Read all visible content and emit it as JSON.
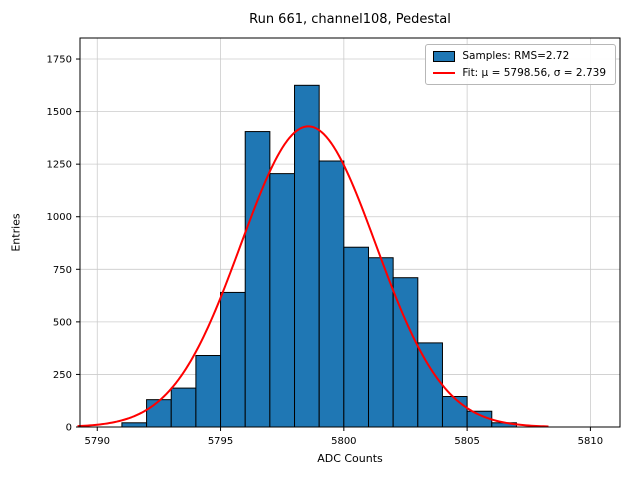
{
  "chart_data": {
    "type": "bar",
    "subtype": "histogram-with-gaussian-fit",
    "title": "Run 661, channel108, Pedestal",
    "xlabel": "ADC Counts",
    "ylabel": "Entries",
    "xlim": [
      5789.3,
      5811.2
    ],
    "ylim": [
      0,
      1850
    ],
    "x_ticks": [
      5790,
      5795,
      5800,
      5805,
      5810
    ],
    "y_ticks": [
      0,
      250,
      500,
      750,
      1000,
      1250,
      1500,
      1750
    ],
    "grid": true,
    "legend_position": "upper right",
    "bins": {
      "start": 5791,
      "width": 1
    },
    "counts": [
      20,
      130,
      185,
      340,
      640,
      1405,
      1205,
      1625,
      1265,
      855,
      805,
      710,
      400,
      145,
      75,
      20
    ],
    "fit": {
      "mu": 5798.56,
      "sigma": 2.739,
      "amplitude": 1430,
      "x_range": [
        5789.2,
        5808.4
      ]
    },
    "legend": [
      "Samples: RMS=2.72",
      "Fit: μ = 5798.56, σ = 2.739"
    ],
    "colors": {
      "bar": "#1f77b4",
      "bar_edge": "#000000",
      "fit_line": "#ff0000",
      "grid": "#cccccc",
      "spine": "#000000"
    }
  }
}
